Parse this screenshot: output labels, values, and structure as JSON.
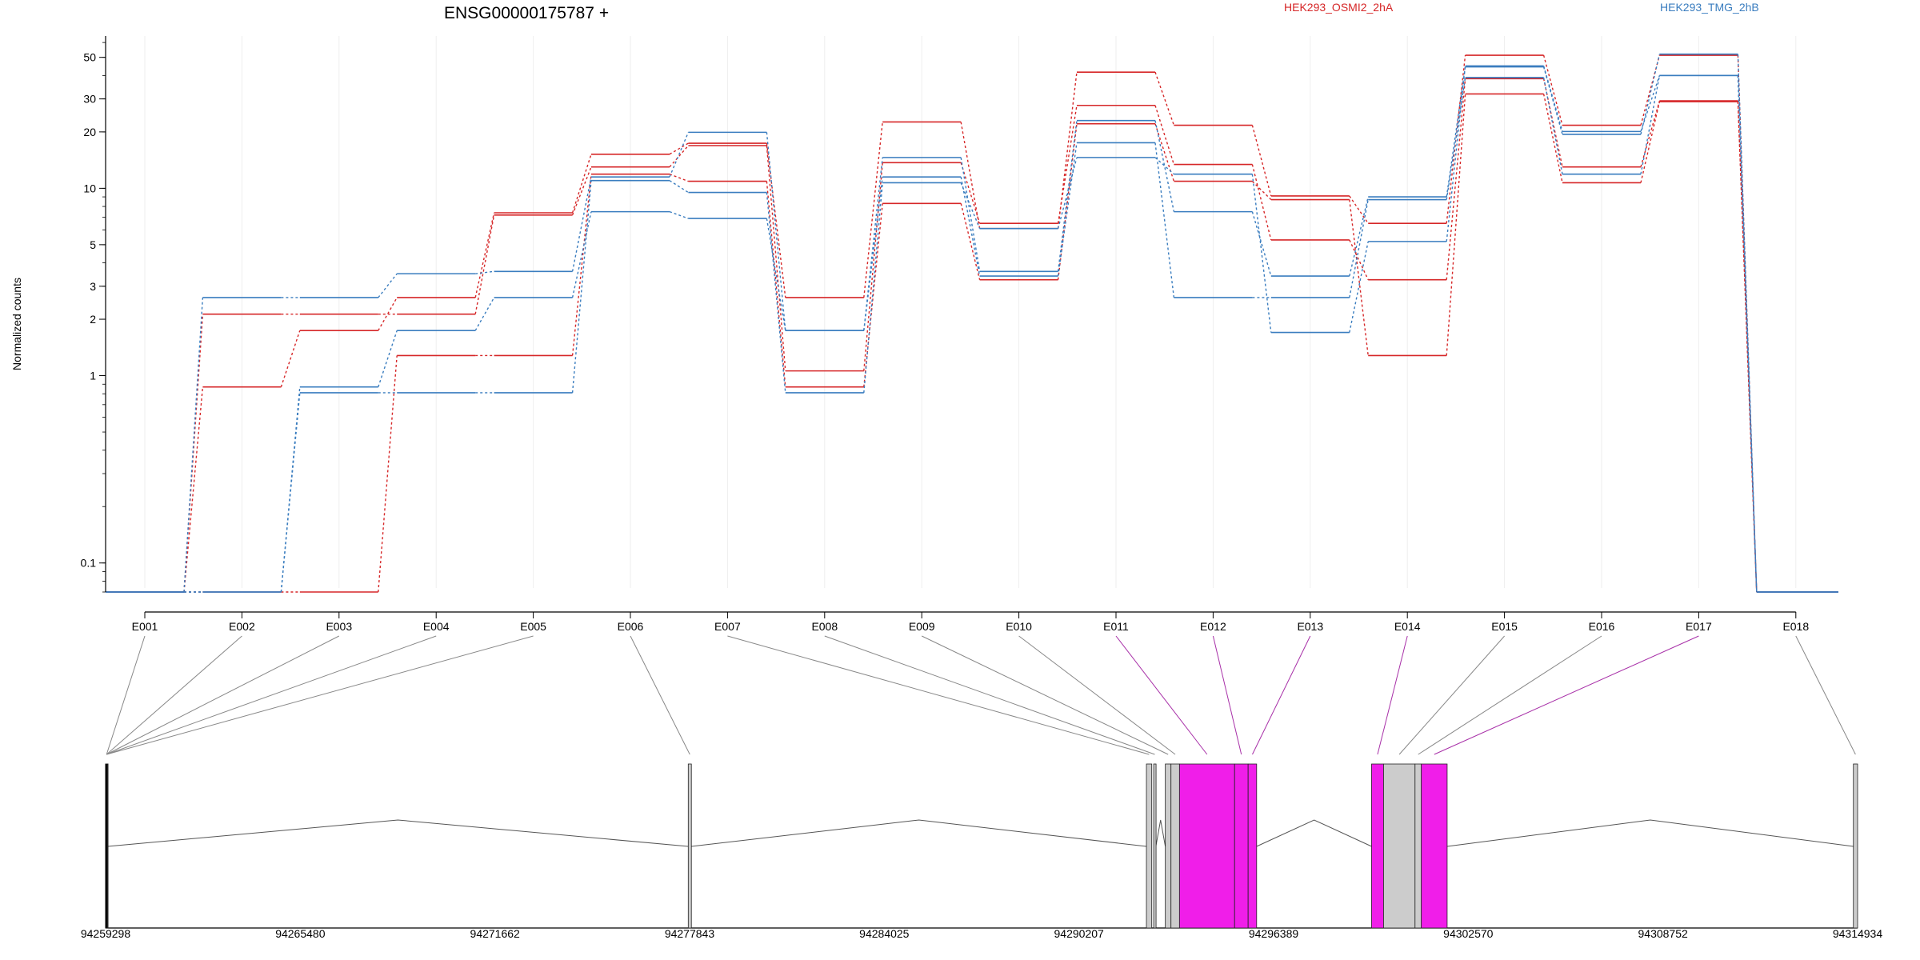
{
  "chart_data": [
    {
      "type": "line",
      "title": "ENSG00000175787 +",
      "ylabel": "Normalized counts",
      "yscale": "log",
      "ylim": [
        0.07,
        65
      ],
      "yticks": [
        0.1,
        1,
        2,
        3,
        5,
        10,
        20,
        30,
        50
      ],
      "ytick_labels": [
        "0.1",
        "1",
        "2",
        "3",
        "5",
        "10",
        "20",
        "30",
        "50"
      ],
      "grid": true,
      "legend": "top",
      "categories": [
        "E001",
        "E002",
        "E003",
        "E004",
        "E005",
        "E006",
        "E007",
        "E008",
        "E009",
        "E010",
        "E011",
        "E012",
        "E013",
        "E014",
        "E015",
        "E016",
        "E017",
        "E018"
      ],
      "groups": [
        {
          "name": "HEK293_OSMI2_2hA",
          "color": "#d62728"
        },
        {
          "name": "HEK293_TMG_2hB",
          "color": "#3a7dbf"
        }
      ],
      "series": [
        {
          "group": 0,
          "values": [
            0.07,
            0.87,
            1.74,
            2.61,
            7.4,
            15.2,
            17.4,
            2.61,
            22.6,
            6.1,
            41.7,
            21.7,
            9.1,
            6.5,
            51.3,
            21.7,
            51.3,
            0.07
          ]
        },
        {
          "group": 0,
          "values": [
            0.07,
            2.13,
            2.13,
            2.13,
            7.2,
            13.0,
            16.9,
            1.06,
            13.7,
            6.5,
            27.7,
            13.4,
            5.3,
            3.25,
            38.5,
            13.0,
            29.3,
            0.07
          ]
        },
        {
          "group": 0,
          "values": [
            0.07,
            0.07,
            0.07,
            1.28,
            1.28,
            11.9,
            10.9,
            0.87,
            8.3,
            3.25,
            22.1,
            10.9,
            8.7,
            1.28,
            31.9,
            10.7,
            29.0,
            0.07
          ]
        },
        {
          "group": 1,
          "values": [
            0.07,
            2.61,
            2.61,
            3.5,
            3.6,
            11.5,
            19.9,
            1.74,
            14.6,
            3.6,
            23.0,
            7.5,
            3.4,
            9.0,
            44.5,
            19.4,
            52.0,
            0.07
          ]
        },
        {
          "group": 1,
          "values": [
            0.07,
            0.07,
            0.87,
            1.74,
            2.61,
            7.5,
            6.9,
            1.74,
            11.5,
            3.4,
            17.5,
            2.61,
            2.61,
            8.7,
            39.0,
            11.9,
            40.0,
            0.07
          ]
        },
        {
          "group": 1,
          "values": [
            0.07,
            0.07,
            0.81,
            0.81,
            0.81,
            11.0,
            9.5,
            0.81,
            10.7,
            6.1,
            14.6,
            11.9,
            1.7,
            5.2,
            45.0,
            20.1,
            40.0,
            0.07
          ]
        }
      ]
    },
    {
      "type": "table",
      "genomic_axis": {
        "start": 94259298,
        "end": 94314934,
        "ticks": [
          94259298,
          94265480,
          94271662,
          94277843,
          94284025,
          94290207,
          94296389,
          94302570,
          94308752,
          94314934
        ],
        "tick_labels": [
          "94259298",
          "94265480",
          "94271662",
          "94277843",
          "94284025",
          "94290207",
          "94296389",
          "94302570",
          "94308752",
          "94314934"
        ]
      },
      "exon_fill": "#cccccc",
      "highlight_fill": "#f01ee9",
      "exons": [
        {
          "id": "E001",
          "start": 94259298,
          "end": 94259360,
          "highlight": false
        },
        {
          "id": "E002",
          "start": 94259298,
          "end": 94259360,
          "highlight": false
        },
        {
          "id": "E003",
          "start": 94259298,
          "end": 94259360,
          "highlight": false
        },
        {
          "id": "E004",
          "start": 94259298,
          "end": 94259360,
          "highlight": false
        },
        {
          "id": "E005",
          "start": 94259298,
          "end": 94259360,
          "highlight": false
        },
        {
          "id": "E006",
          "start": 94277800,
          "end": 94277900,
          "highlight": false
        },
        {
          "id": "E007",
          "start": 94292350,
          "end": 94292520,
          "highlight": false
        },
        {
          "id": "E008",
          "start": 94292580,
          "end": 94292650,
          "highlight": false
        },
        {
          "id": "E009",
          "start": 94292950,
          "end": 94293130,
          "highlight": false
        },
        {
          "id": "E010",
          "start": 94293130,
          "end": 94293400,
          "highlight": false
        },
        {
          "id": "E011",
          "start": 94293400,
          "end": 94295150,
          "highlight": true
        },
        {
          "id": "E012",
          "start": 94295150,
          "end": 94295580,
          "highlight": true
        },
        {
          "id": "E013",
          "start": 94295580,
          "end": 94295850,
          "highlight": true
        },
        {
          "id": "E014",
          "start": 94299500,
          "end": 94299880,
          "highlight": true
        },
        {
          "id": "E015",
          "start": 94299880,
          "end": 94300880,
          "highlight": false
        },
        {
          "id": "E016",
          "start": 94300880,
          "end": 94301080,
          "highlight": false
        },
        {
          "id": "E017",
          "start": 94301080,
          "end": 94301900,
          "highlight": true
        },
        {
          "id": "E018",
          "start": 94314800,
          "end": 94314934,
          "highlight": false
        }
      ],
      "introns": [
        {
          "start": 94259360,
          "end": 94277800
        },
        {
          "start": 94277900,
          "end": 94292350
        },
        {
          "start": 94292650,
          "end": 94292950
        },
        {
          "start": 94295850,
          "end": 94299500
        },
        {
          "start": 94301900,
          "end": 94314800
        }
      ]
    }
  ]
}
